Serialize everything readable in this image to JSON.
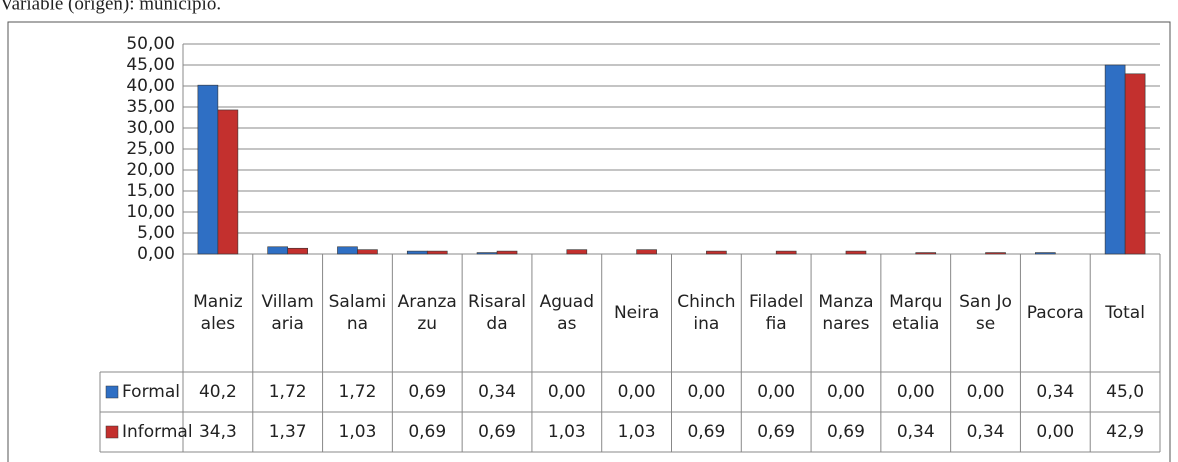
{
  "caption": "Variable (origen): municipio.",
  "chart_data": {
    "type": "bar",
    "categories": [
      "Manizales",
      "Villamaria",
      "Salamina",
      "Aranzazu",
      "Risaralda",
      "Aguadas",
      "Neira",
      "Chinchina",
      "Filadelfia",
      "Manzanares",
      "Marquetalia",
      "San Jose",
      "Pacora",
      "Total"
    ],
    "series": [
      {
        "name": "Formal",
        "color": "#2f6fc4",
        "values": [
          40.2,
          1.72,
          1.72,
          0.69,
          0.34,
          0,
          0,
          0,
          0,
          0,
          0,
          0,
          0.34,
          45.0
        ],
        "value_labels": [
          "40,2",
          "1,72",
          "1,72",
          "0,69",
          "0,34",
          "0,00",
          "0,00",
          "0,00",
          "0,00",
          "0,00",
          "0,00",
          "0,00",
          "0,34",
          "45,0"
        ]
      },
      {
        "name": "Informal",
        "color": "#c3302e",
        "values": [
          34.3,
          1.37,
          1.03,
          0.69,
          0.69,
          1.03,
          1.03,
          0.69,
          0.69,
          0.69,
          0.34,
          0.34,
          0,
          42.9
        ],
        "value_labels": [
          "34,3",
          "1,37",
          "1,03",
          "0,69",
          "0,69",
          "1,03",
          "1,03",
          "0,69",
          "0,69",
          "0,69",
          "0,34",
          "0,34",
          "0,00",
          "42,9"
        ]
      }
    ],
    "ylim": [
      0,
      50
    ],
    "yticks": [
      {
        "value": 0,
        "label": "0,00"
      },
      {
        "value": 5,
        "label": "5,00"
      },
      {
        "value": 10,
        "label": "10,00"
      },
      {
        "value": 15,
        "label": "15,00"
      },
      {
        "value": 20,
        "label": "20,00"
      },
      {
        "value": 25,
        "label": "25,00"
      },
      {
        "value": 30,
        "label": "30,00"
      },
      {
        "value": 35,
        "label": "35,00"
      },
      {
        "value": 40,
        "label": "40,00"
      },
      {
        "value": 45,
        "label": "45,00"
      },
      {
        "value": 50,
        "label": "50,00"
      }
    ],
    "grid": true
  }
}
